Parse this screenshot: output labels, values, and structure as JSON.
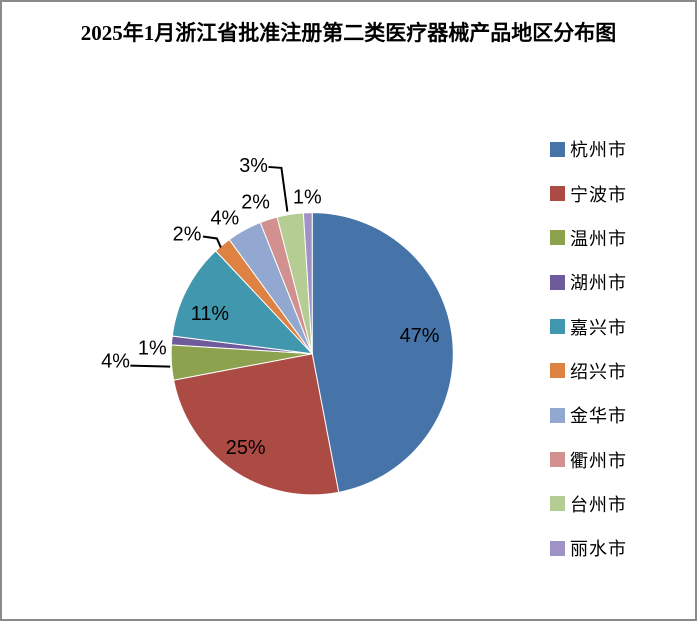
{
  "window": {
    "background_color": "#ffffff",
    "border_color": "#8a8a8a"
  },
  "chart_data": {
    "type": "pie",
    "title": "2025年1月浙江省批准注册第二类医疗器械产品地区分布图",
    "categories": [
      "杭州市",
      "宁波市",
      "温州市",
      "湖州市",
      "嘉兴市",
      "绍兴市",
      "金华市",
      "衢州市",
      "台州市",
      "丽水市"
    ],
    "values": [
      47,
      25,
      4,
      1,
      11,
      2,
      4,
      2,
      3,
      1
    ],
    "labels": [
      "47%",
      "25%",
      "4%",
      "1%",
      "11%",
      "2%",
      "4%",
      "2%",
      "3%",
      "1%"
    ],
    "unit": "%",
    "colors": [
      "#4673A8",
      "#AC4A44",
      "#8CA24E",
      "#6F5A9B",
      "#4197AE",
      "#DE8244",
      "#93A8D1",
      "#D2908E",
      "#B5CC92",
      "#9F93C6"
    ],
    "legend_position": "right",
    "start_angle_deg": 0,
    "direction": "clockwise",
    "label_color": "#000000",
    "leader_line_color": "#000000"
  }
}
